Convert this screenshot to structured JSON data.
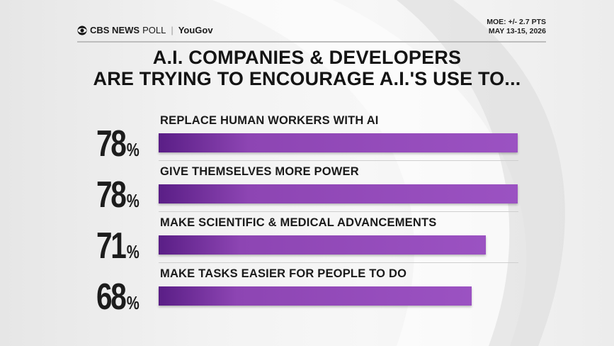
{
  "header": {
    "brand_cbs": "CBS NEWS",
    "brand_poll": "POLL",
    "brand_yougov": "YouGov",
    "moe": "MOE: +/- 2.7 PTS",
    "dates": "MAY 13-15, 2026"
  },
  "title_line1": "A.I. COMPANIES & DEVELOPERS",
  "title_line2": "ARE TRYING TO ENCOURAGE A.I.'S USE TO...",
  "chart_data": {
    "type": "bar",
    "orientation": "horizontal",
    "categories": [
      "REPLACE HUMAN WORKERS WITH AI",
      "GIVE THEMSELVES MORE POWER",
      "MAKE SCIENTIFIC & MEDICAL ADVANCEMENTS",
      "MAKE TASKS EASIER FOR PEOPLE TO DO"
    ],
    "values": [
      78,
      78,
      71,
      68
    ],
    "value_labels": [
      "78",
      "78",
      "71",
      "68"
    ],
    "unit": "%",
    "xlim": [
      0,
      100
    ],
    "bar_color": "#9b52c2"
  }
}
